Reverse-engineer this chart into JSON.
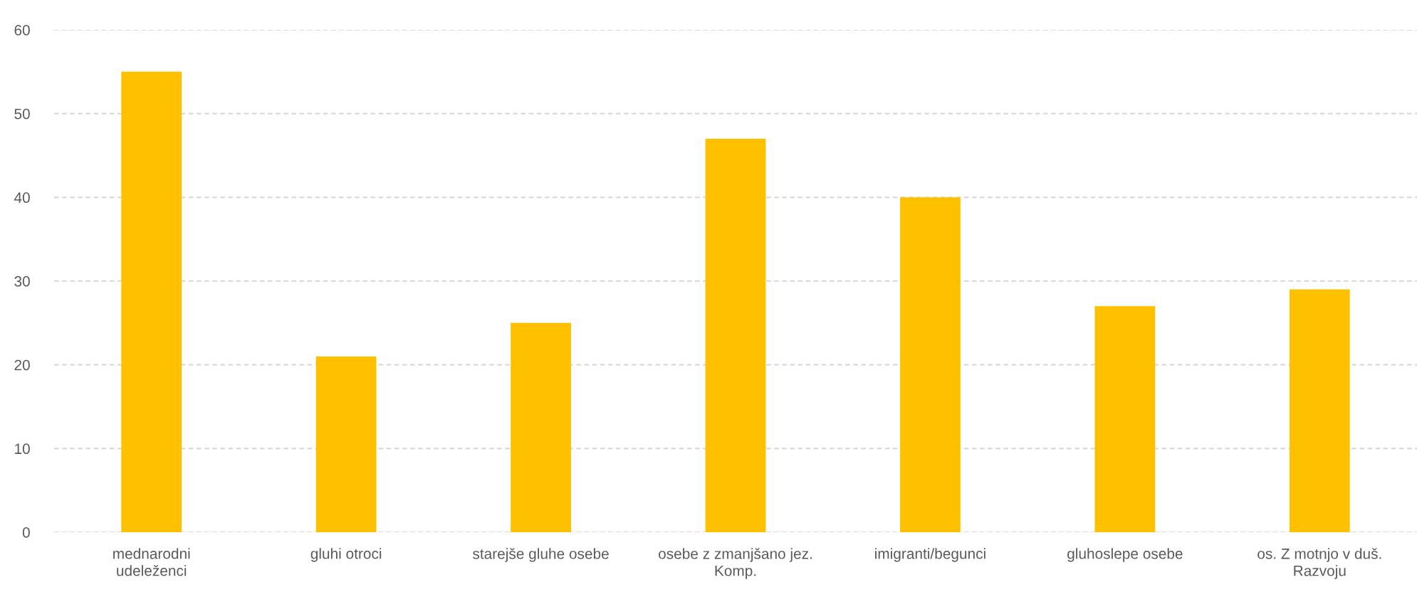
{
  "chart_data": {
    "type": "bar",
    "categories": [
      "mednarodni\nudeleženci",
      "gluhi otroci",
      "starejše gluhe osebe",
      "osebe z zmanjšano jez.\nKomp.",
      "imigranti/begunci",
      "gluhoslepe osebe",
      "os. Z motnjo v duš.\nRazvoju"
    ],
    "values": [
      55,
      21,
      25,
      47,
      40,
      27,
      29
    ],
    "color": "#ffc000",
    "ylim": [
      0,
      60
    ],
    "yticks": [
      0,
      10,
      20,
      30,
      40,
      50,
      60
    ],
    "grid": "y"
  }
}
